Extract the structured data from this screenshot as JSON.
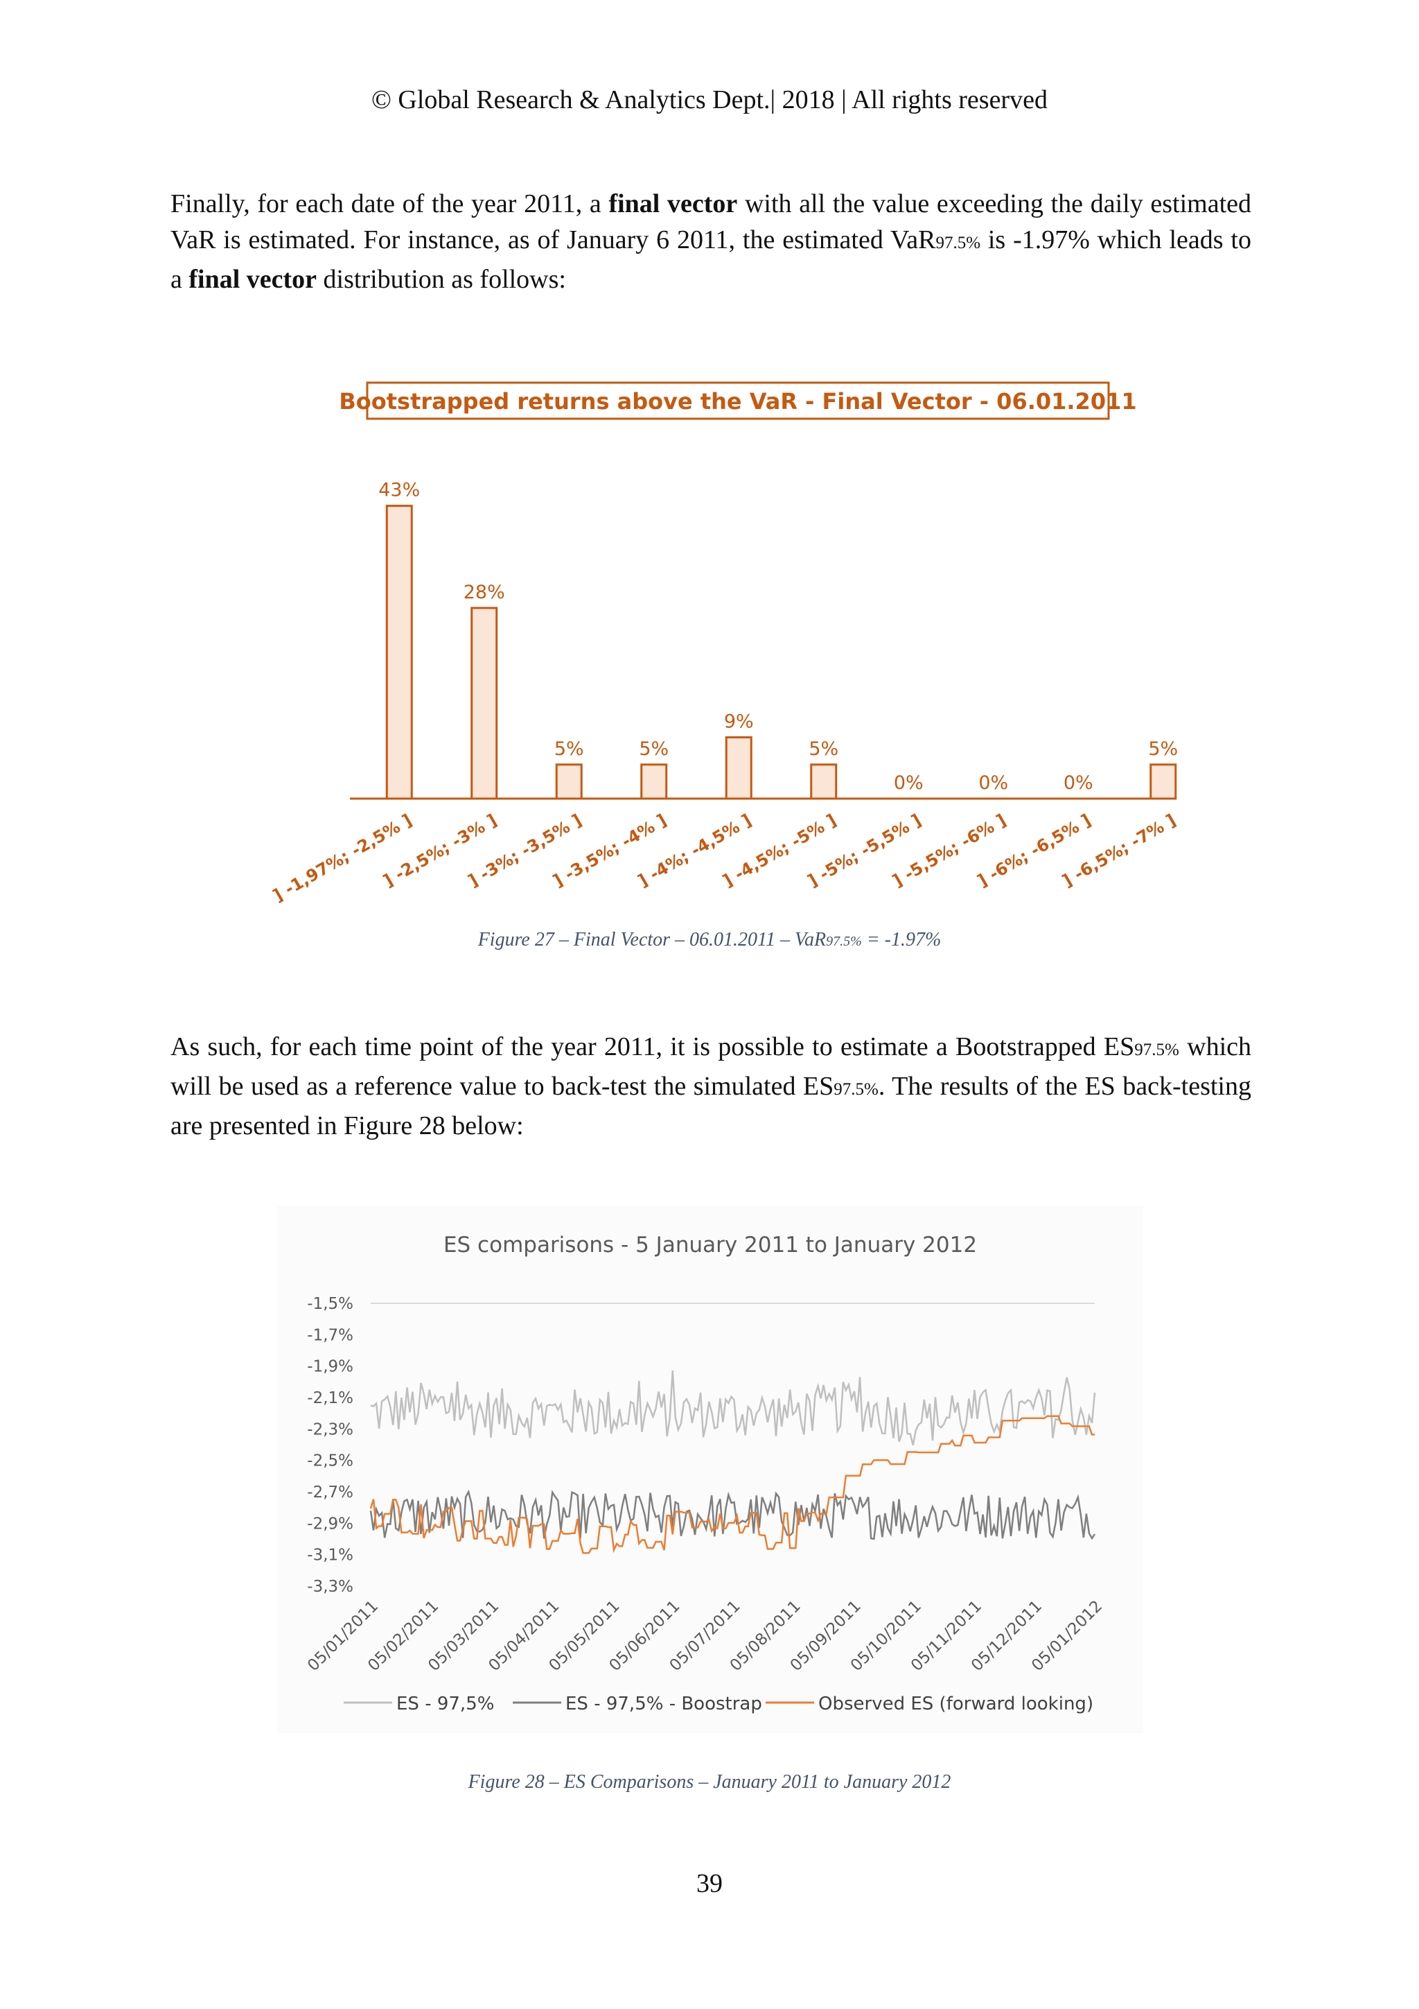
{
  "header": "© Global Research & Analytics Dept.| 2018 | All rights reserved",
  "para1": {
    "s1": "Finally, for each date of the year 2011, a ",
    "b1": "final vector",
    "s2": " with all the value exceeding the daily estimated VaR is estimated. For instance, as of January 6 2011, the estimated VaR",
    "sub": "97.5%",
    "s3": " is -1.97% which leads to a ",
    "b2": "final vector",
    "s4": " distribution as follows:"
  },
  "figure27_caption": {
    "a": "Figure 27 – Final Vector – 06.01.2011 – VaR",
    "sub": "97.5%",
    "b": " = -1.97%"
  },
  "para2": {
    "s1": "As such, for each time point of the year 2011, it is possible to estimate a Bootstrapped ES",
    "sub1": "97.5%",
    "s2": " which will be used as a reference value to back-test the simulated ES",
    "sub2": "97.5%",
    "s3": ". The results of the ES back-testing are presented in Figure 28 below:"
  },
  "figure28_caption": "Figure 28 – ES Comparisons – January 2011 to January 2012",
  "page_number": "39",
  "colors": {
    "accent": "#c55a11",
    "bar_fill": "#fbe5d6",
    "es": "#bfbfbf",
    "boot": "#7f7f7f",
    "observed": "#ed7d31"
  },
  "chart_data": [
    {
      "type": "bar",
      "title": "Bootstrapped returns above the VaR - Final Vector - 06.01.2011",
      "categories": [
        "] -1,97%; -2,5% ]",
        "] -2,5%; -3% ]",
        "] -3%; -3,5% ]",
        "] -3,5%; -4% ]",
        "] -4%; -4,5% ]",
        "] -4,5%; -5% ]",
        "] -5%; -5,5% ]",
        "] -5,5%; -6% ]",
        "] -6%; -6,5% ]",
        "] -6,5%; -7% ]"
      ],
      "values": [
        43,
        28,
        5,
        5,
        9,
        5,
        0,
        0,
        0,
        5
      ],
      "data_labels": [
        "43%",
        "28%",
        "5%",
        "5%",
        "9%",
        "5%",
        "0%",
        "0%",
        "0%",
        "5%"
      ],
      "ylim": [
        0,
        45
      ]
    },
    {
      "type": "line",
      "title": "ES comparisons - 5 January 2011  to  January 2012",
      "y_ticks": [
        "-1,5%",
        "-1,7%",
        "-1,9%",
        "-2,1%",
        "-2,3%",
        "-2,5%",
        "-2,7%",
        "-2,9%",
        "-3,1%",
        "-3,3%"
      ],
      "ylim": [
        -3.3,
        -1.5
      ],
      "x_ticks": [
        "05/01/2011",
        "05/02/2011",
        "05/03/2011",
        "05/04/2011",
        "05/05/2011",
        "05/06/2011",
        "05/07/2011",
        "05/08/2011",
        "05/09/2011",
        "05/10/2011",
        "05/11/2011",
        "05/12/2011",
        "05/01/2012"
      ],
      "x_range": [
        "05/01/2011",
        "05/01/2012"
      ],
      "grid": "horizontal top line",
      "legend_position": "bottom",
      "series": [
        {
          "name": "ES -  97,5%",
          "approx_mean": -2.2,
          "approx_range": [
            -2.45,
            -1.9
          ],
          "monthly_approx": [
            -2.2,
            -2.15,
            -2.2,
            -2.2,
            -2.2,
            -2.2,
            -2.2,
            -2.2,
            -2.15,
            -2.25,
            -2.2,
            -2.2,
            -2.2
          ]
        },
        {
          "name": "ES - 97,5% - Boostrap",
          "approx_mean": -2.85,
          "approx_range": [
            -3.15,
            -2.65
          ],
          "monthly_approx": [
            -2.85,
            -2.85,
            -2.85,
            -2.85,
            -2.85,
            -2.85,
            -2.85,
            -2.85,
            -2.85,
            -2.85,
            -2.85,
            -2.85,
            -2.85
          ]
        },
        {
          "name": "Observed ES (forward looking)",
          "monthly_approx": [
            -2.8,
            -2.9,
            -2.95,
            -3.0,
            -2.95,
            -2.95,
            -2.95,
            -2.95,
            -2.55,
            -2.45,
            -2.35,
            -2.2,
            -2.35
          ]
        }
      ]
    }
  ]
}
